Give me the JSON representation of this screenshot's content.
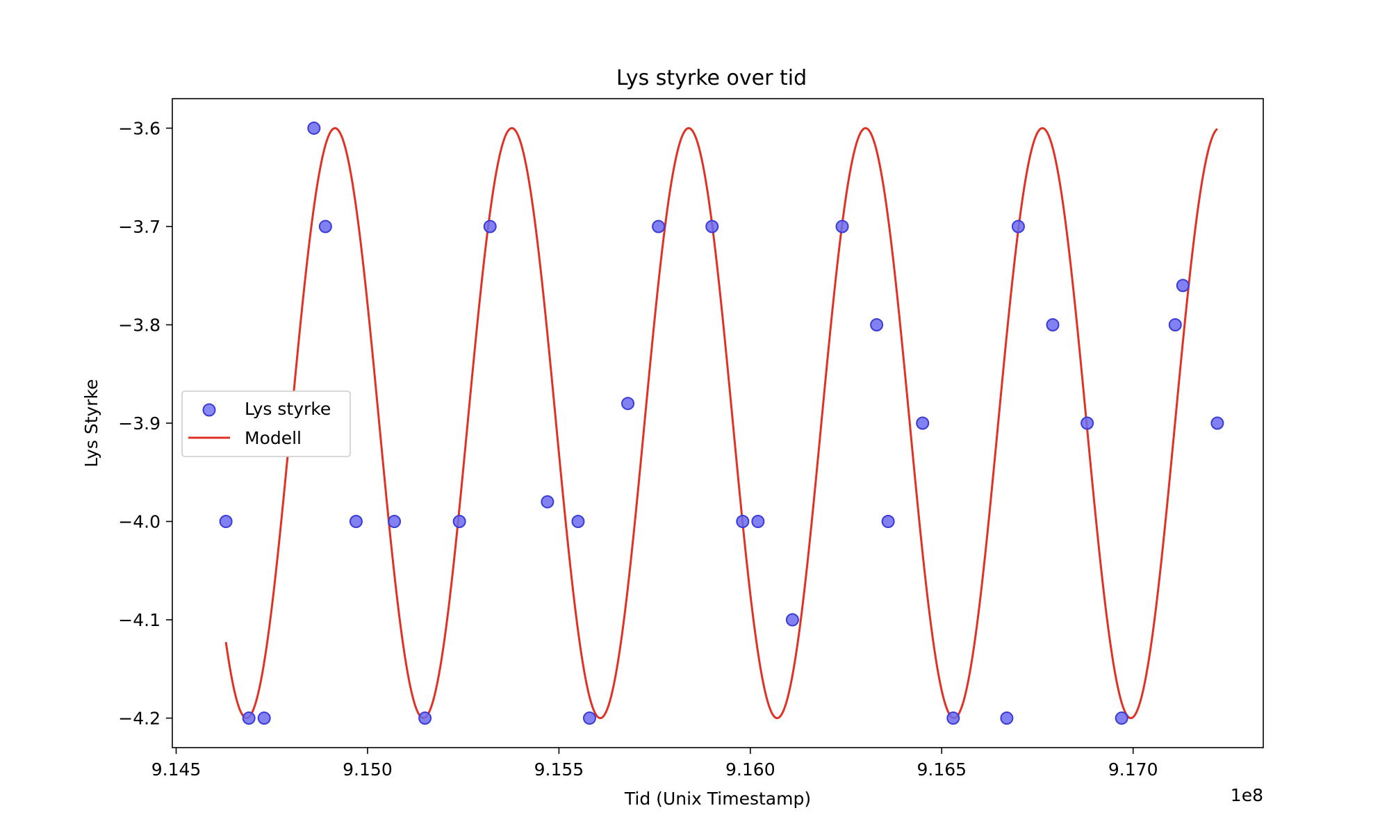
{
  "chart_data": {
    "type": "scatter",
    "title": "Lys styrke over tid",
    "xlabel": "Tid (Unix Timestamp)",
    "ylabel": "Lys Styrke",
    "x_offset_label": "1e8",
    "xlim": [
      9.1449,
      9.1734
    ],
    "ylim": [
      -4.23,
      -3.57
    ],
    "x_ticks": [
      9.145,
      9.15,
      9.155,
      9.16,
      9.165,
      9.17
    ],
    "x_tick_labels": [
      "9.145",
      "9.150",
      "9.155",
      "9.160",
      "9.165",
      "9.170"
    ],
    "y_ticks": [
      -3.6,
      -3.7,
      -3.8,
      -3.9,
      -4.0,
      -4.1,
      -4.2
    ],
    "y_tick_labels": [
      "−3.6",
      "−3.7",
      "−3.8",
      "−3.9",
      "−4.0",
      "−4.1",
      "−4.2"
    ],
    "grid": false,
    "legend_position": "center-left",
    "series": [
      {
        "name": "Lys styrke",
        "kind": "scatter",
        "color": "#6b6bf0",
        "edge_color": "#3a3ad8",
        "points": [
          [
            9.1463,
            -4.0
          ],
          [
            9.1469,
            -4.2
          ],
          [
            9.1473,
            -4.2
          ],
          [
            9.1486,
            -3.6
          ],
          [
            9.1489,
            -3.7
          ],
          [
            9.1497,
            -4.0
          ],
          [
            9.1507,
            -4.0
          ],
          [
            9.1515,
            -4.2
          ],
          [
            9.1524,
            -4.0
          ],
          [
            9.1532,
            -3.7
          ],
          [
            9.1547,
            -3.98
          ],
          [
            9.1555,
            -4.0
          ],
          [
            9.1558,
            -4.2
          ],
          [
            9.1568,
            -3.88
          ],
          [
            9.1576,
            -3.7
          ],
          [
            9.159,
            -3.7
          ],
          [
            9.1598,
            -4.0
          ],
          [
            9.1602,
            -4.0
          ],
          [
            9.1611,
            -4.1
          ],
          [
            9.1624,
            -3.7
          ],
          [
            9.1633,
            -3.8
          ],
          [
            9.1636,
            -4.0
          ],
          [
            9.1645,
            -3.9
          ],
          [
            9.1653,
            -4.2
          ],
          [
            9.1667,
            -4.2
          ],
          [
            9.167,
            -3.7
          ],
          [
            9.1679,
            -3.8
          ],
          [
            9.1688,
            -3.9
          ],
          [
            9.1697,
            -4.2
          ],
          [
            9.1711,
            -3.8
          ],
          [
            9.1713,
            -3.76
          ],
          [
            9.1722,
            -3.9
          ]
        ]
      },
      {
        "name": "Modell",
        "kind": "line",
        "color": "#e03124",
        "model": {
          "form": "offset + amplitude * cos(2*pi*(x - x_peak)/period)",
          "offset": -3.9,
          "amplitude": 0.3,
          "period": 0.00462,
          "x_peak": 9.14915,
          "x_range": [
            9.1463,
            9.1722
          ]
        }
      }
    ]
  }
}
